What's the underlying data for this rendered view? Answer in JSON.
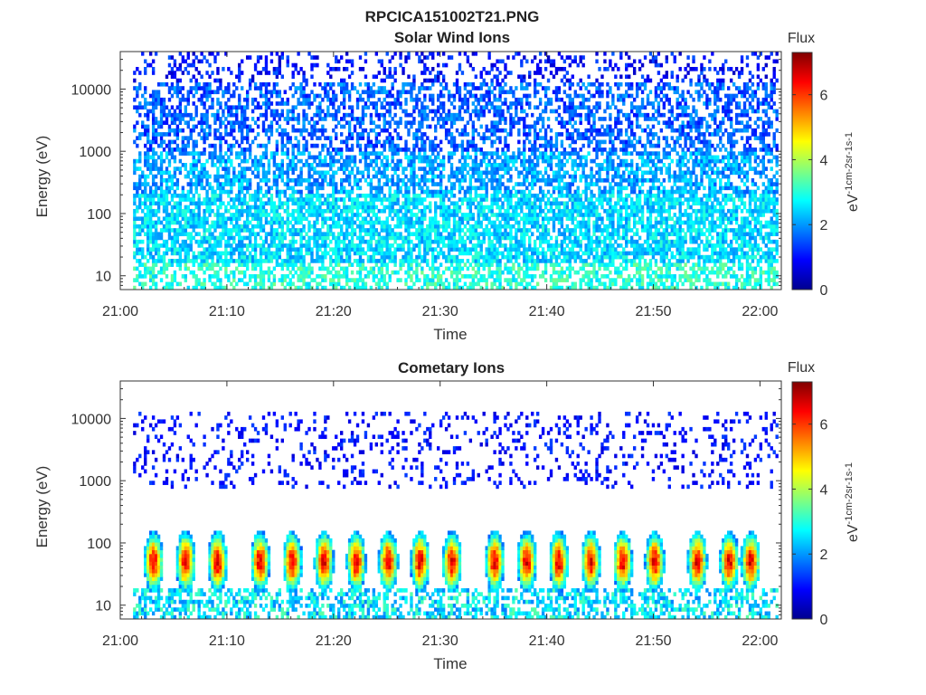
{
  "figure": {
    "title": "RPCICA151002T21.PNG"
  },
  "chart_data": [
    {
      "type": "heatmap",
      "title": "Solar Wind Ions",
      "xlabel": "Time",
      "ylabel": "Energy (eV)",
      "x_range": [
        "21:00",
        "22:02"
      ],
      "x_ticks": [
        "21:00",
        "21:10",
        "21:20",
        "21:30",
        "21:40",
        "21:50",
        "22:00"
      ],
      "y_scale": "log",
      "y_range": [
        6,
        40000
      ],
      "y_ticks": [
        10,
        100,
        1000,
        10000
      ],
      "y_tick_labels": [
        "10",
        "100",
        "1000",
        "10000"
      ],
      "colorbar": {
        "title": "Flux",
        "label_base": "eV",
        "label_units": "-1cm-2sr-1s-1",
        "range": [
          0,
          7.3
        ],
        "ticks": [
          0,
          2,
          4,
          6
        ],
        "colormap": "jet"
      },
      "pattern": "sparse low-flux (~1-3) ion counts across 10-40000 eV throughout the hour; denser 2-3 flux near 30-300 eV"
    },
    {
      "type": "heatmap",
      "title": "Cometary Ions",
      "xlabel": "Time",
      "ylabel": "Energy (eV)",
      "x_range": [
        "21:00",
        "22:02"
      ],
      "x_ticks": [
        "21:00",
        "21:10",
        "21:20",
        "21:30",
        "21:40",
        "21:50",
        "22:00"
      ],
      "y_scale": "log",
      "y_range": [
        6,
        40000
      ],
      "y_ticks": [
        10,
        100,
        1000,
        10000
      ],
      "y_tick_labels": [
        "10",
        "100",
        "1000",
        "10000"
      ],
      "colorbar": {
        "title": "Flux",
        "label_base": "eV",
        "label_units": "-1cm-2sr-1s-1",
        "range": [
          0,
          7.3
        ],
        "ticks": [
          0,
          2,
          4,
          6
        ],
        "colormap": "jet"
      },
      "burst_times": [
        "21:03",
        "21:06",
        "21:09",
        "21:13",
        "21:16",
        "21:19",
        "21:22",
        "21:25",
        "21:28",
        "21:31",
        "21:35",
        "21:38",
        "21:41",
        "21:44",
        "21:47",
        "21:50",
        "21:54",
        "21:57",
        "21:59"
      ],
      "burst_peak_energy_eV": 50,
      "burst_peak_flux": 6.5,
      "pattern": "periodic bursts (~3 min) of high flux (5-7) centred near 30-100 eV; sparse low-flux counts at 1000-10000 eV"
    }
  ]
}
